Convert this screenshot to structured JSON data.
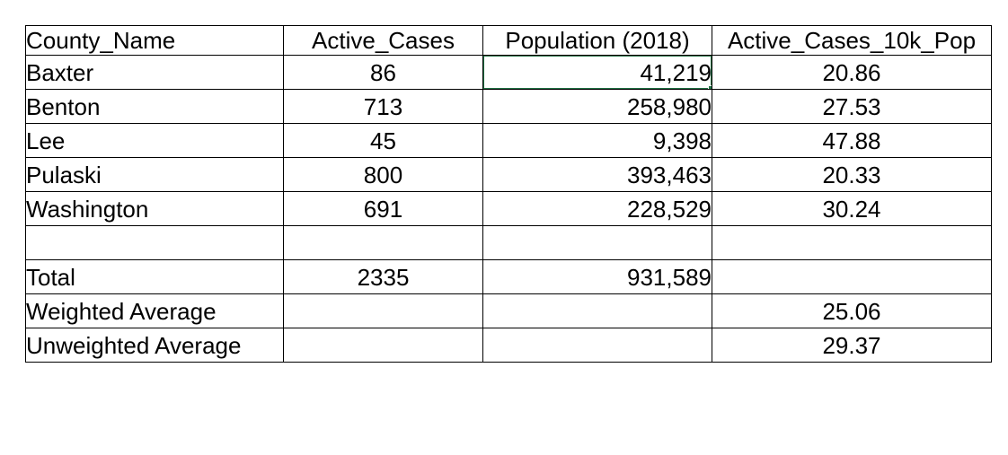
{
  "table": {
    "columns": [
      {
        "label": "County_Name",
        "align": "left"
      },
      {
        "label": "Active_Cases",
        "align": "center"
      },
      {
        "label": "Population (2018)",
        "align": "right"
      },
      {
        "label": "Active_Cases_10k_Pop",
        "align": "center"
      }
    ],
    "rows": [
      {
        "cells": [
          "Baxter",
          "86",
          "41,219",
          "20.86"
        ]
      },
      {
        "cells": [
          "Benton",
          "713",
          "258,980",
          "27.53"
        ]
      },
      {
        "cells": [
          "Lee",
          "45",
          "9,398",
          "47.88"
        ]
      },
      {
        "cells": [
          "Pulaski",
          "800",
          "393,463",
          "20.33"
        ]
      },
      {
        "cells": [
          "Washington",
          "691",
          "228,529",
          "30.24"
        ]
      },
      {
        "cells": [
          "",
          "",
          "",
          ""
        ]
      },
      {
        "cells": [
          "Total",
          "2335",
          "931,589",
          ""
        ]
      },
      {
        "cells": [
          "Weighted Average",
          "",
          "",
          "25.06"
        ]
      },
      {
        "cells": [
          "Unweighted Average",
          "",
          "",
          "29.37"
        ]
      }
    ],
    "selected_cell": {
      "row": "Baxter",
      "column": "Population (2018)",
      "value": "41,219",
      "border_color": "#217346"
    }
  }
}
